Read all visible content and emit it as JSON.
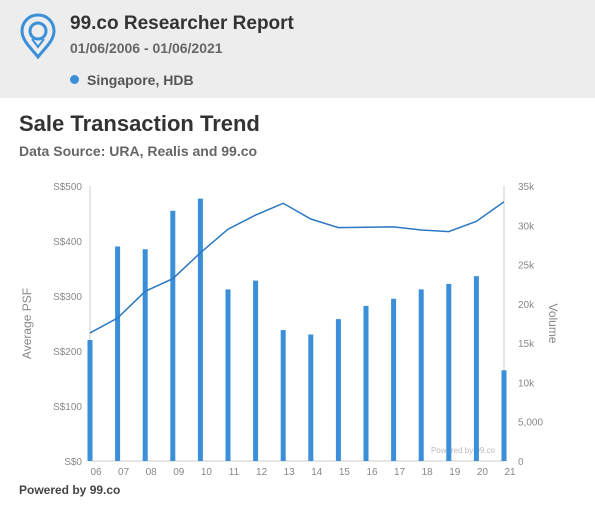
{
  "header": {
    "title": "99.co Researcher Report",
    "date_range": "01/06/2006 - 01/06/2021",
    "location": "Singapore, HDB"
  },
  "section": {
    "title": "Sale Transaction Trend",
    "source": "Data Source: URA, Realis and 99.co"
  },
  "footer": {
    "powered_by": "Powered by 99.co"
  },
  "chart_data": {
    "type": "bar",
    "categories": [
      "06",
      "07",
      "08",
      "09",
      "10",
      "11",
      "12",
      "13",
      "14",
      "15",
      "16",
      "17",
      "18",
      "19",
      "20",
      "21"
    ],
    "xlabel": "",
    "ylabel": "Average PSF",
    "y2label": "Volume",
    "ylim": [
      0,
      500
    ],
    "y2lim": [
      0,
      35000
    ],
    "yticks": [
      "S$0",
      "S$100",
      "S$200",
      "S$300",
      "S$400",
      "S$500"
    ],
    "y2ticks": [
      "0",
      "5,000",
      "10k",
      "15k",
      "20k",
      "25k",
      "30k",
      "35k"
    ],
    "watermark": "Powered by 99.co",
    "series": [
      {
        "kind": "bar",
        "axis": "left",
        "color": "#3a8fd8",
        "values": [
          220,
          390,
          385,
          455,
          477,
          312,
          328,
          238,
          230,
          258,
          282,
          295,
          312,
          322,
          336,
          165
        ]
      },
      {
        "kind": "line",
        "axis": "right",
        "color": "#2b78c2",
        "values": [
          16300,
          18200,
          21600,
          23200,
          26500,
          29500,
          31300,
          32800,
          30800,
          29700,
          29750,
          29800,
          29400,
          29200,
          30500,
          33000
        ]
      }
    ]
  }
}
